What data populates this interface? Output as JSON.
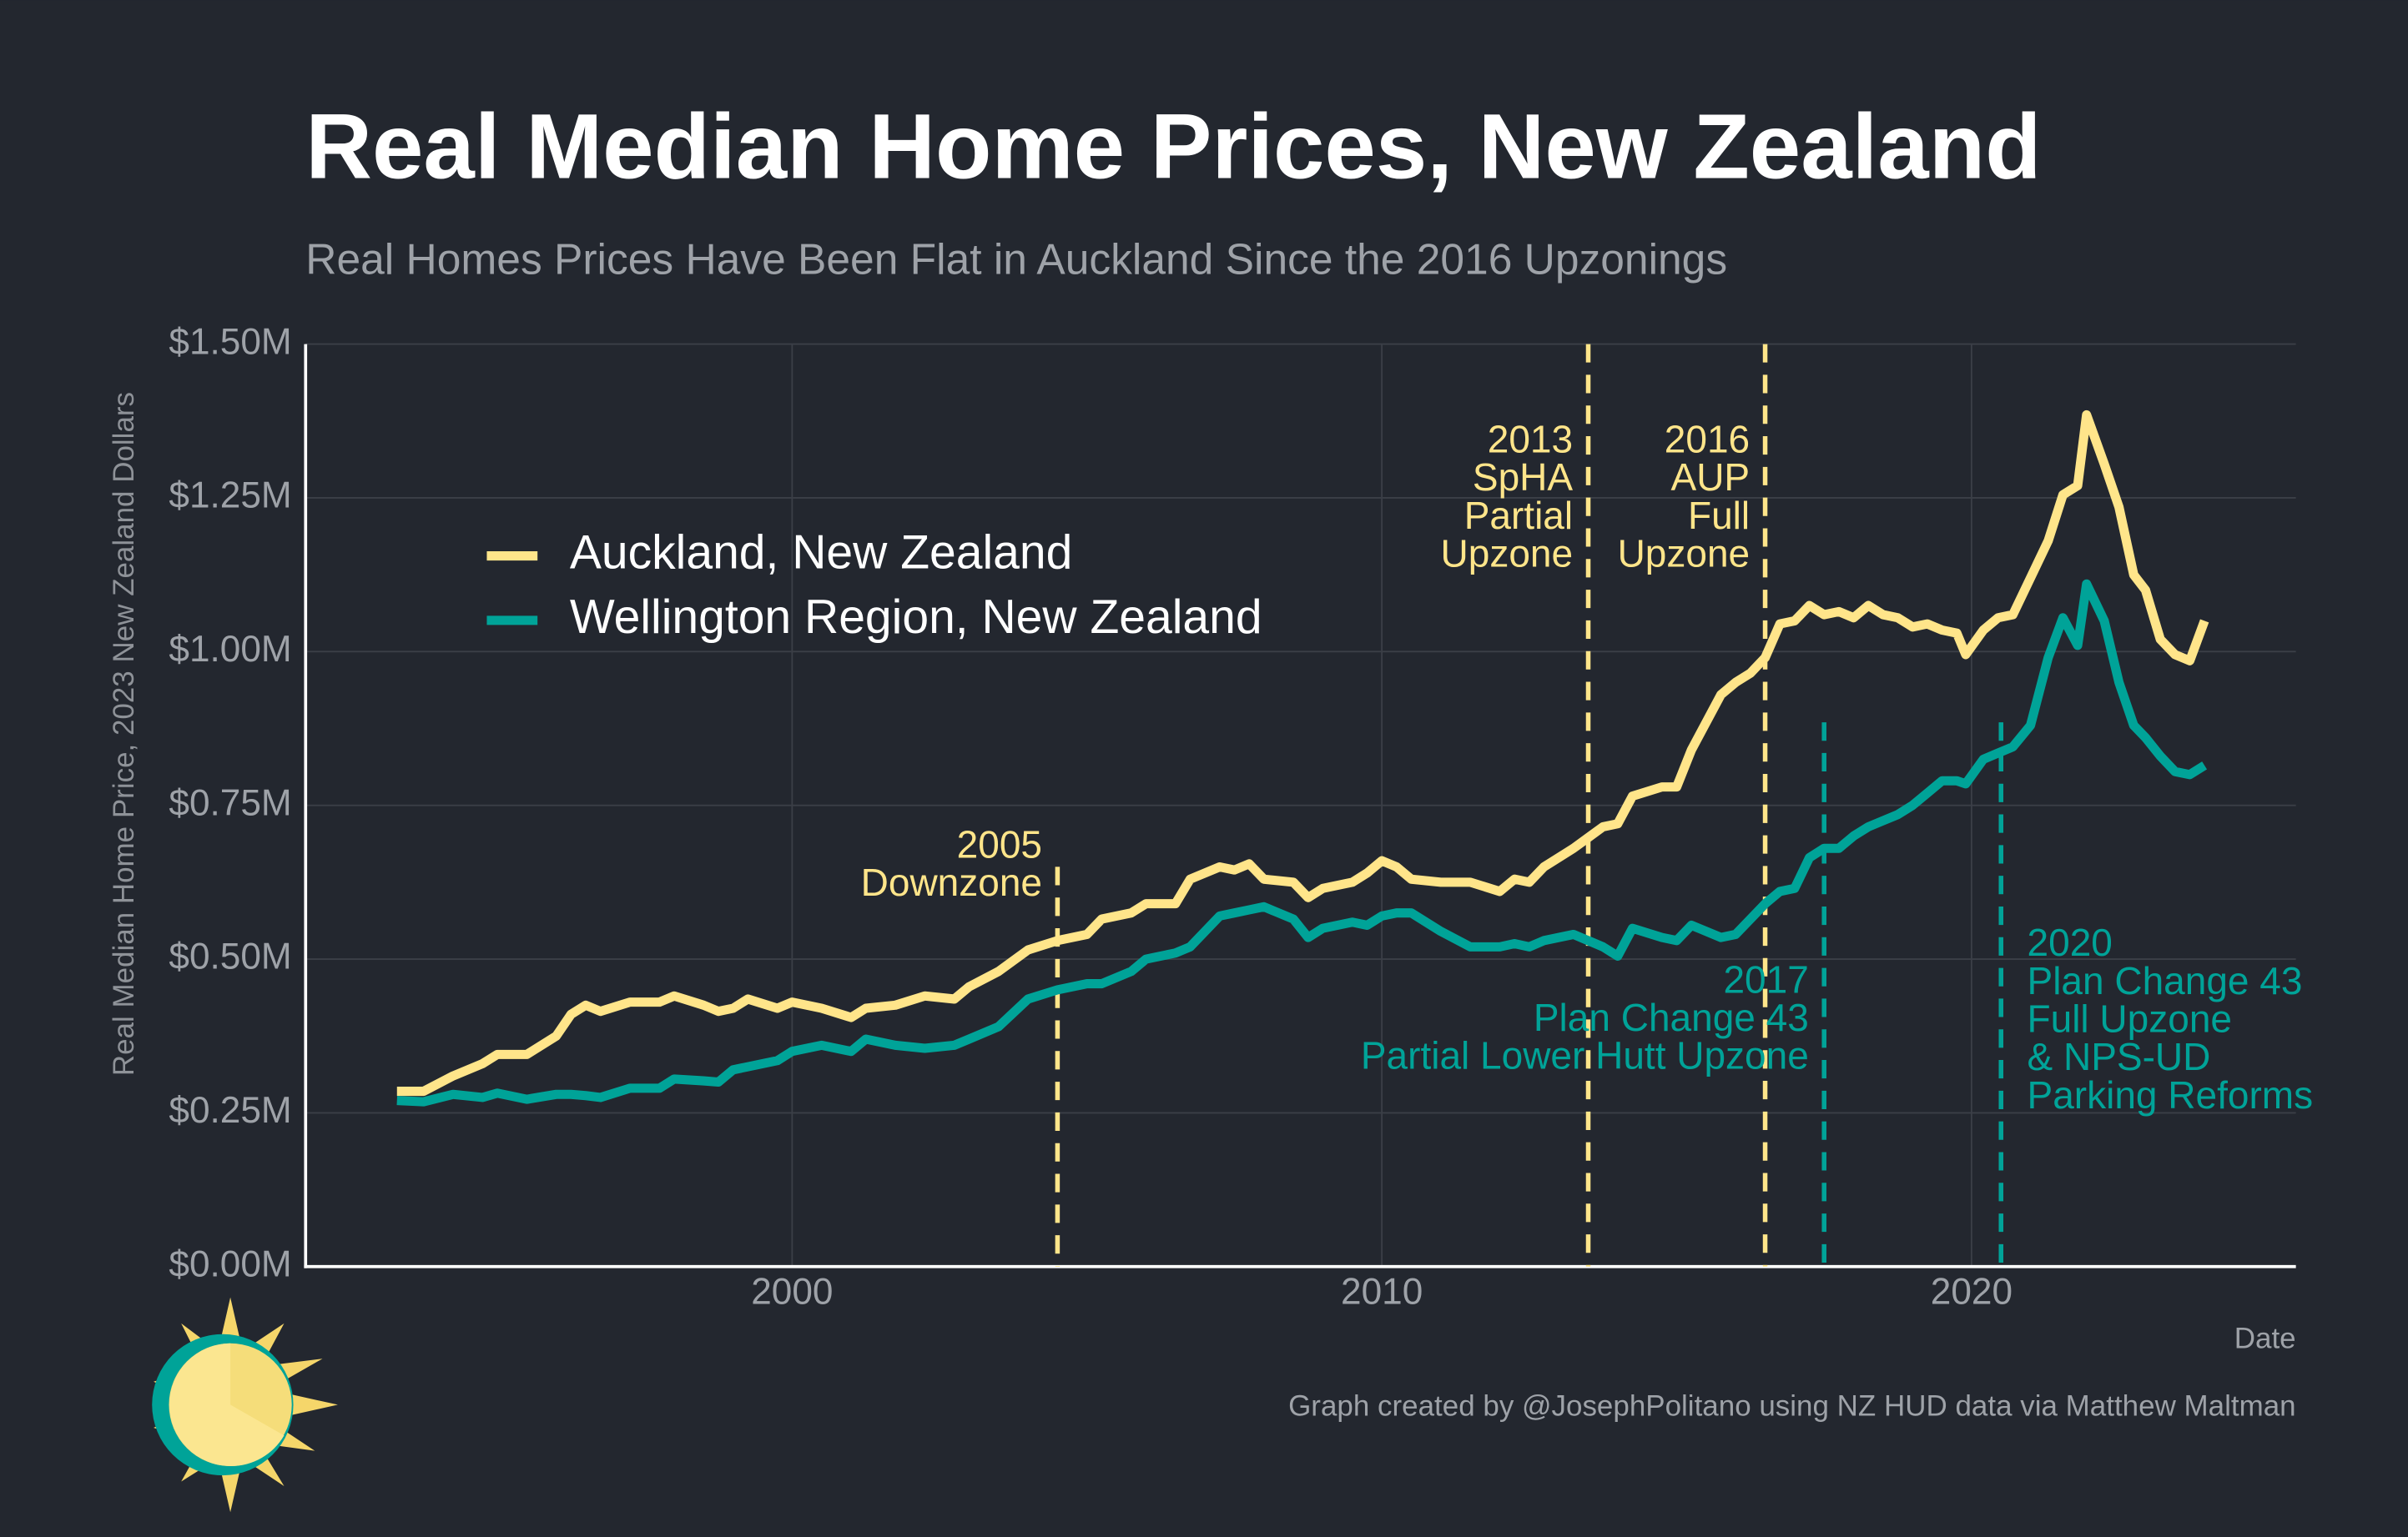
{
  "chart_data": {
    "type": "line",
    "title": "Real Median Home Prices, New Zealand",
    "subtitle": "Real Homes Prices Have Been Flat in Auckland Since the 2016 Upzonings",
    "y_label": "Real Median Home Price, 2023 New Zealand Dollars",
    "x_label": "Date",
    "credit": "Graph created by @JosephPolitano using NZ HUD data via Matthew Maltman",
    "xlim": [
      1991.75,
      2025.5
    ],
    "xticks": [
      2000,
      2010,
      2020
    ],
    "ylim": [
      0,
      1.5
    ],
    "yticks": [
      {
        "value": 0,
        "label": "$0.00M"
      },
      {
        "value": 0.25,
        "label": "$0.25M"
      },
      {
        "value": 0.5,
        "label": "$0.50M"
      },
      {
        "value": 0.75,
        "label": "$0.75M"
      },
      {
        "value": 1,
        "label": "$1.00M"
      },
      {
        "value": 1.25,
        "label": "$1.25M"
      },
      {
        "value": 1.5,
        "label": "$1.50M"
      }
    ],
    "grid": true,
    "legend": "upper left",
    "x": [
      1993.3,
      1993.75,
      1994.25,
      1994.75,
      1995.0,
      1995.5,
      1996.0,
      1996.25,
      1996.5,
      1996.75,
      1997.25,
      1997.75,
      1998.0,
      1998.5,
      1998.75,
      1999.0,
      1999.25,
      1999.75,
      2000.0,
      2000.5,
      2001.0,
      2001.25,
      2001.75,
      2002.25,
      2002.75,
      2003.0,
      2003.5,
      2004.0,
      2004.5,
      2005.0,
      2005.25,
      2005.75,
      2006.0,
      2006.5,
      2006.75,
      2007.25,
      2007.5,
      2007.75,
      2008.0,
      2008.5,
      2008.75,
      2009.0,
      2009.5,
      2009.75,
      2010.0,
      2010.25,
      2010.5,
      2011.0,
      2011.5,
      2012.0,
      2012.25,
      2012.5,
      2012.75,
      2013.25,
      2013.75,
      2014.0,
      2014.25,
      2014.75,
      2015.0,
      2015.25,
      2015.75,
      2016.0,
      2016.25,
      2016.5,
      2016.75,
      2017.0,
      2017.25,
      2017.5,
      2017.75,
      2018.0,
      2018.25,
      2018.5,
      2018.75,
      2019.0,
      2019.25,
      2019.5,
      2019.75,
      2019.9,
      2020.2,
      2020.45,
      2020.7,
      2021.0,
      2021.3,
      2021.55,
      2021.8,
      2021.95,
      2022.25,
      2022.5,
      2022.75,
      2022.95,
      2023.2,
      2023.45,
      2023.7,
      2023.95
    ],
    "series": [
      {
        "name": "Auckland, New Zealand",
        "color": "#ffe58a",
        "values": [
          0.285,
          0.285,
          0.31,
          0.33,
          0.345,
          0.345,
          0.375,
          0.41,
          0.425,
          0.415,
          0.43,
          0.43,
          0.44,
          0.425,
          0.415,
          0.42,
          0.435,
          0.42,
          0.43,
          0.42,
          0.405,
          0.42,
          0.425,
          0.44,
          0.435,
          0.455,
          0.48,
          0.515,
          0.53,
          0.54,
          0.565,
          0.575,
          0.59,
          0.59,
          0.63,
          0.65,
          0.645,
          0.655,
          0.63,
          0.625,
          0.6,
          0.615,
          0.625,
          0.64,
          0.66,
          0.65,
          0.63,
          0.625,
          0.625,
          0.61,
          0.63,
          0.625,
          0.65,
          0.68,
          0.715,
          0.72,
          0.765,
          0.78,
          0.78,
          0.84,
          0.93,
          0.95,
          0.965,
          0.99,
          1.045,
          1.05,
          1.075,
          1.06,
          1.065,
          1.055,
          1.075,
          1.06,
          1.055,
          1.04,
          1.045,
          1.035,
          1.03,
          0.995,
          1.035,
          1.055,
          1.06,
          1.12,
          1.18,
          1.255,
          1.27,
          1.385,
          1.305,
          1.235,
          1.125,
          1.1,
          1.02,
          0.995,
          0.985,
          1.05
        ]
      },
      {
        "name": "Wellington Region, New Zealand",
        "color": "#00a398",
        "values": [
          0.27,
          0.268,
          0.28,
          0.275,
          0.282,
          0.272,
          0.28,
          0.28,
          0.278,
          0.275,
          0.29,
          0.29,
          0.305,
          0.302,
          0.3,
          0.32,
          0.325,
          0.335,
          0.35,
          0.36,
          0.35,
          0.37,
          0.36,
          0.355,
          0.36,
          0.37,
          0.39,
          0.435,
          0.45,
          0.46,
          0.46,
          0.48,
          0.5,
          0.51,
          0.52,
          0.57,
          0.575,
          0.58,
          0.585,
          0.565,
          0.535,
          0.55,
          0.56,
          0.555,
          0.57,
          0.575,
          0.575,
          0.545,
          0.52,
          0.52,
          0.525,
          0.52,
          0.53,
          0.54,
          0.52,
          0.505,
          0.55,
          0.535,
          0.53,
          0.555,
          0.535,
          0.54,
          0.565,
          0.59,
          0.61,
          0.615,
          0.665,
          0.68,
          0.68,
          0.7,
          0.715,
          0.725,
          0.735,
          0.75,
          0.77,
          0.79,
          0.79,
          0.785,
          0.825,
          0.835,
          0.845,
          0.88,
          0.99,
          1.055,
          1.01,
          1.11,
          1.05,
          0.95,
          0.88,
          0.86,
          0.83,
          0.805,
          0.8,
          0.815
        ]
      }
    ],
    "annotations": [
      {
        "x": 2004.5,
        "y_top": 0.65,
        "color": "#ffe58a",
        "lines": [
          "2005",
          "Downzone"
        ]
      },
      {
        "x": 2013.5,
        "y_top": 1.5,
        "color": "#ffe58a",
        "lines": [
          "2013",
          "SpHA",
          "Partial",
          "Upzone"
        ]
      },
      {
        "x": 2016.5,
        "y_top": 1.5,
        "color": "#ffe58a",
        "lines": [
          "2016",
          "AUP",
          "Full",
          "Upzone"
        ]
      },
      {
        "x": 2017.5,
        "y_top": 0.885,
        "color": "#00a398",
        "lines": [
          "2017",
          "Plan Change 43",
          "Partial Lower Hutt Upzone"
        ]
      },
      {
        "x": 2020.5,
        "y_top": 0.885,
        "color": "#00a398",
        "lines": [
          "2020",
          "Plan Change 43",
          "Full Upzone",
          "& NPS-UD",
          "Parking Reforms"
        ]
      }
    ]
  }
}
